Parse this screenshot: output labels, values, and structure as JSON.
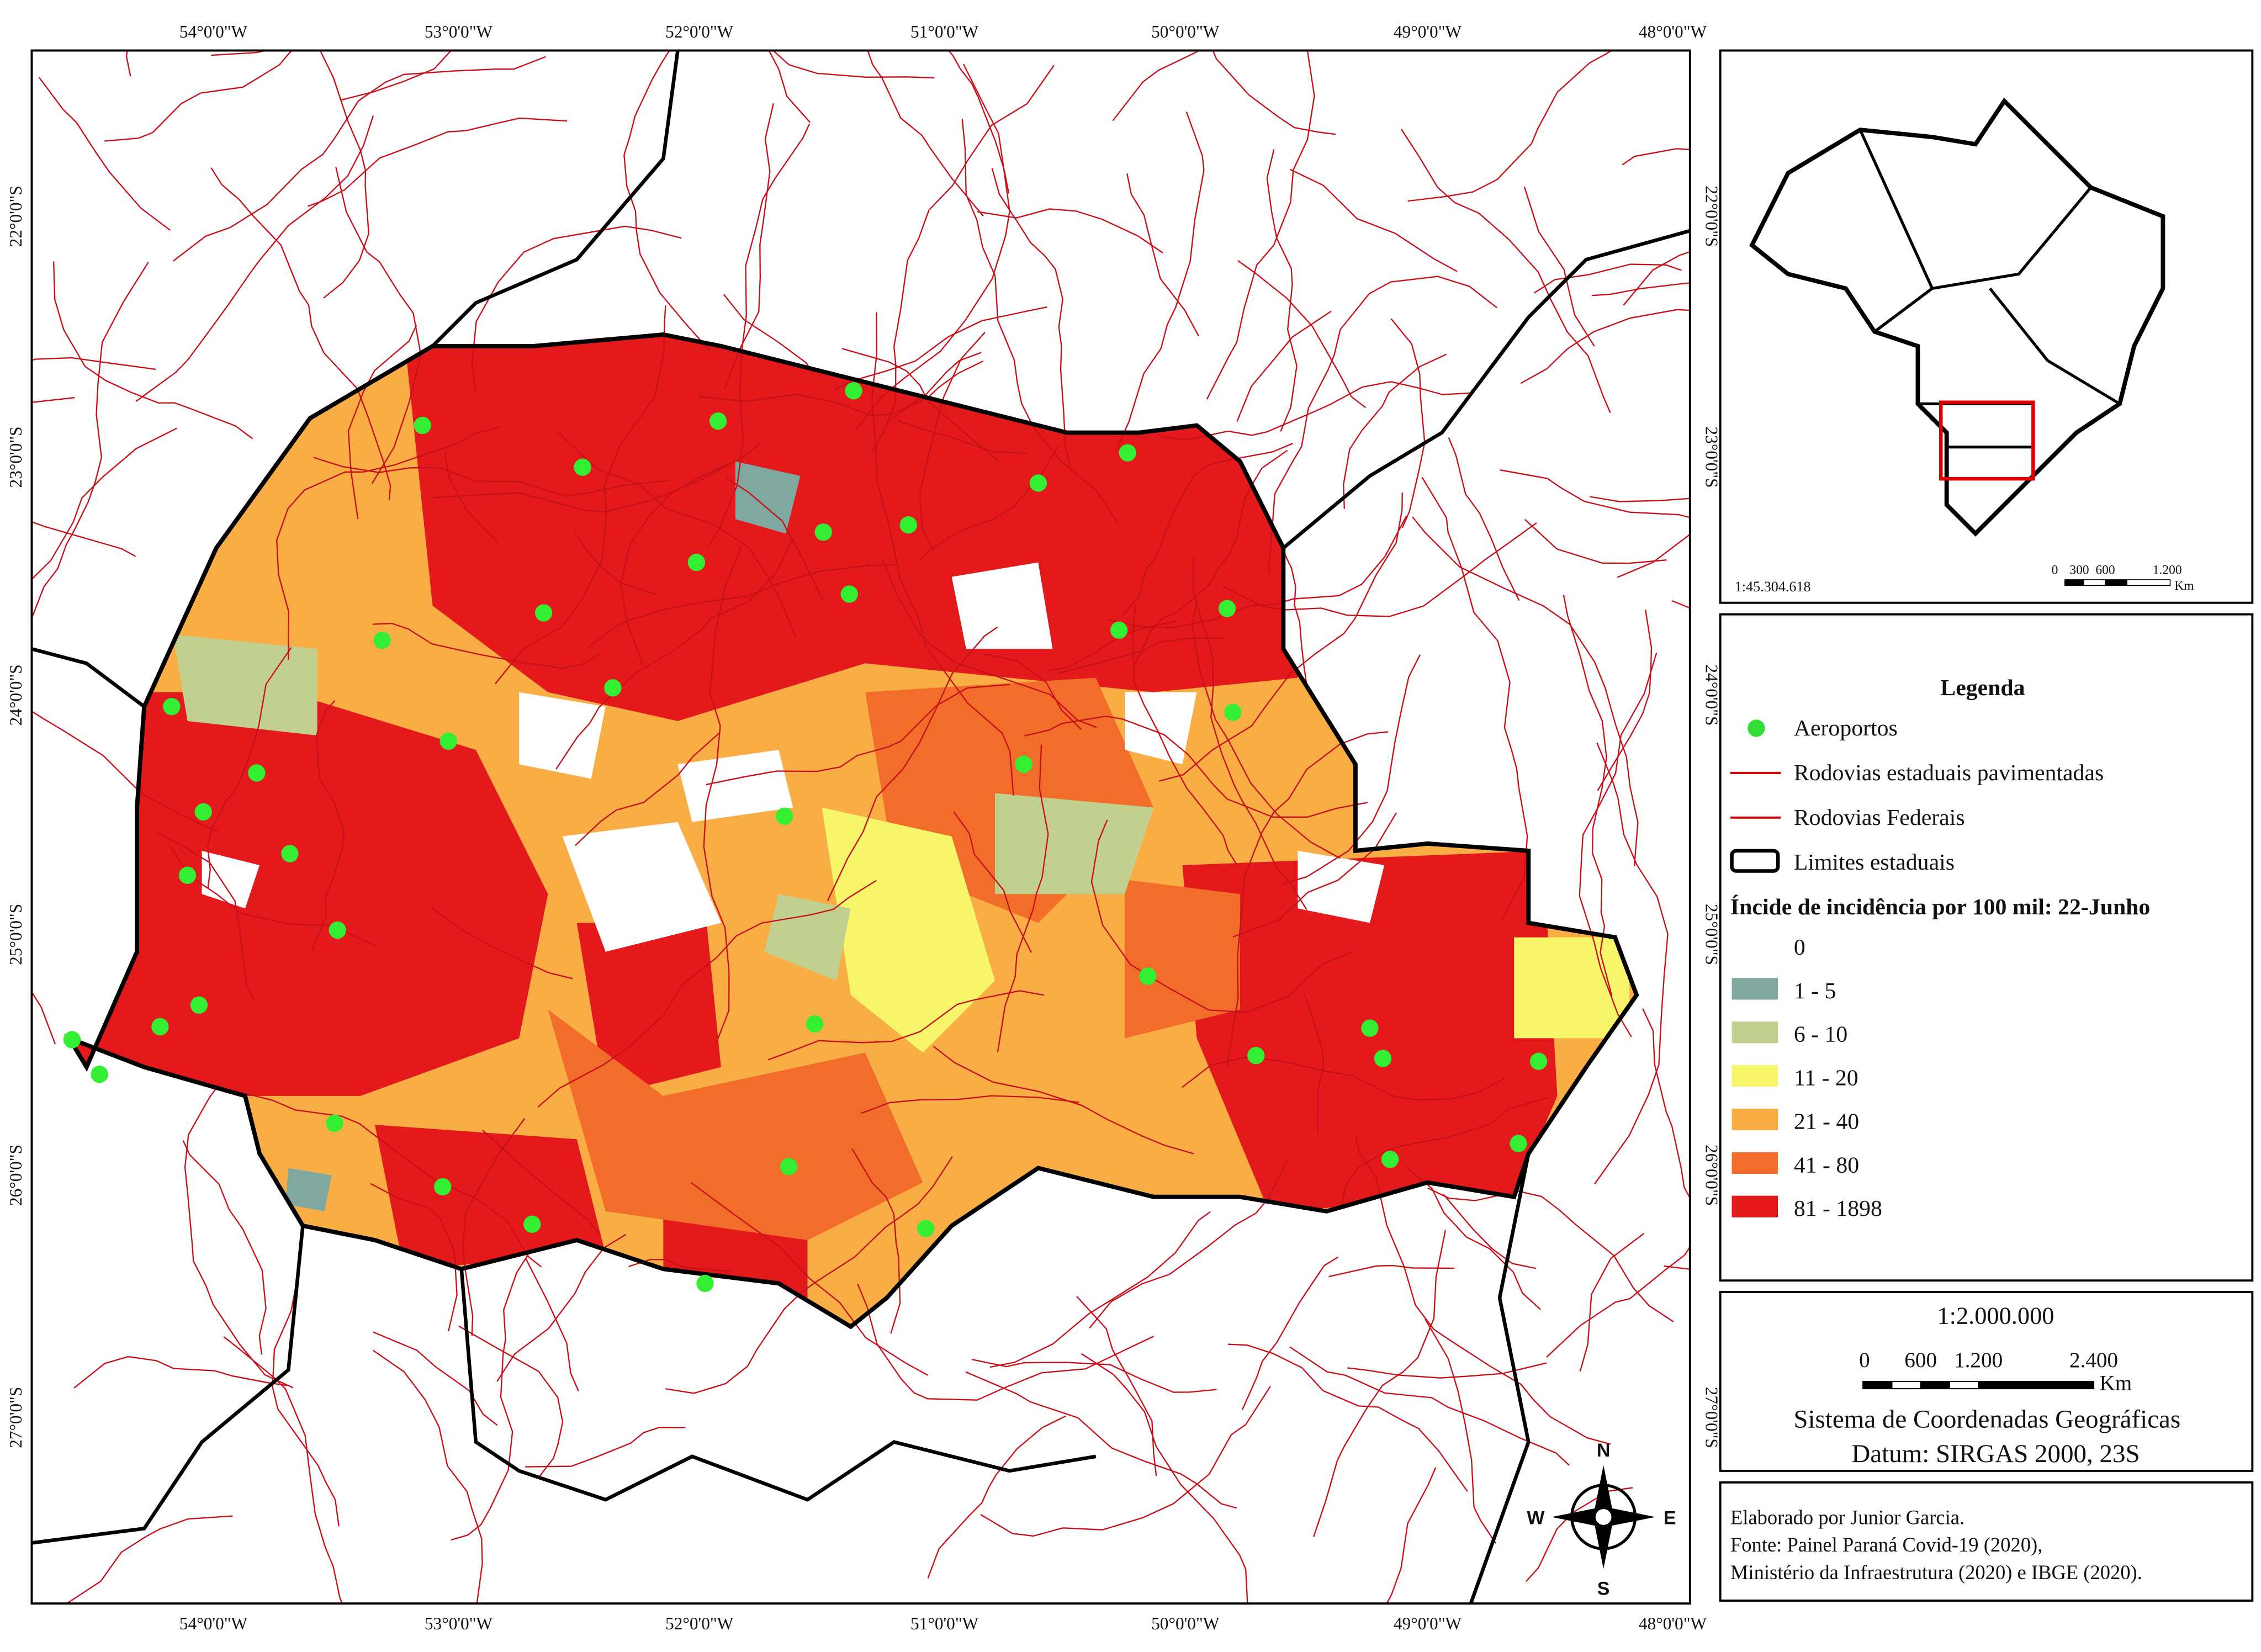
{
  "map": {
    "lon_labels": [
      "54°0'0\"W",
      "53°0'0\"W",
      "52°0'0\"W",
      "51°0'0\"W",
      "50°0'0\"W",
      "49°0'0\"W",
      "48°0'0\"W"
    ],
    "lat_labels": [
      "22°0'0\"S",
      "23°0'0\"S",
      "24°0'0\"S",
      "25°0'0\"S",
      "26°0'0\"S",
      "27°0'0\"S"
    ],
    "compass": {
      "n": "N",
      "s": "S",
      "e": "E",
      "w": "W"
    }
  },
  "inset": {
    "scale": "1:45.304.618",
    "scalebar_labels": [
      "0",
      "300",
      "600",
      "1.200"
    ],
    "unit": "Km"
  },
  "legend": {
    "title": "Legenda",
    "items": [
      "Aeroportos",
      "Rodovias estaduais pavimentadas",
      "Rodovias Federais",
      "Limites estaduais"
    ],
    "classes_title": "Íncide de incidência por 100 mil: 22-Junho",
    "classes": [
      {
        "label": "0",
        "color": "#ffffff"
      },
      {
        "label": "1 - 5",
        "color": "#7fa8a0"
      },
      {
        "label": "6 - 10",
        "color": "#c2d08f"
      },
      {
        "label": "11 - 20",
        "color": "#f7f56a"
      },
      {
        "label": "21 - 40",
        "color": "#f9ad45"
      },
      {
        "label": "41 - 80",
        "color": "#f26d2a"
      },
      {
        "label": "81 - 1898",
        "color": "#e3191c"
      }
    ]
  },
  "scale_box": {
    "ratio": "1:2.000.000",
    "scalebar_labels": [
      "0",
      "600",
      "1.200",
      "2.400"
    ],
    "unit": "Km",
    "crs": "Sistema de Coordenadas Geográficas",
    "datum": "Datum: SIRGAS 2000, 23S"
  },
  "credits": [
    "Elaborado por Junior Garcia.",
    "Fonte: Painel Paraná Covid-19 (2020),",
    "Ministério da Infraestrutura (2020) e IBGE (2020)."
  ]
}
